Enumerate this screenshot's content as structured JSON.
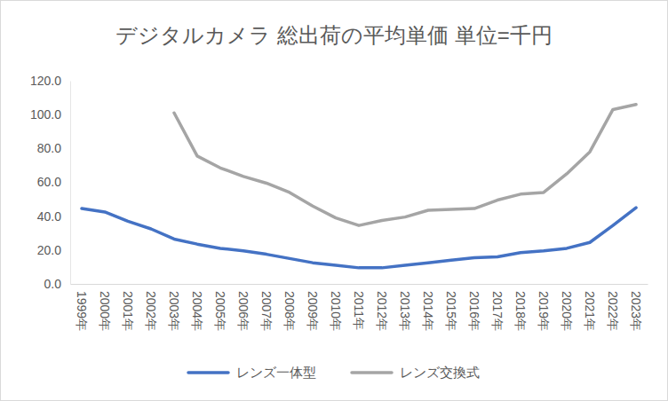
{
  "chart_data": {
    "type": "line",
    "title": "デジタルカメラ 総出荷の平均単価 単位=千円",
    "categories": [
      "1999年",
      "2000年",
      "2001年",
      "2002年",
      "2003年",
      "2004年",
      "2005年",
      "2006年",
      "2007年",
      "2008年",
      "2009年",
      "2010年",
      "2011年",
      "2012年",
      "2013年",
      "2014年",
      "2015年",
      "2016年",
      "2017年",
      "2018年",
      "2019年",
      "2020年",
      "2021年",
      "2022年",
      "2023年"
    ],
    "series": [
      {
        "name": "レンズ一体型",
        "color": "#4472c4",
        "values": [
          44.5,
          42.5,
          37,
          32.5,
          26.5,
          23.5,
          21,
          19.5,
          17.5,
          15,
          12.5,
          11,
          9.5,
          9.5,
          11,
          12.5,
          14,
          15.5,
          16,
          18.5,
          19.5,
          21,
          24.5,
          34.5,
          45
        ]
      },
      {
        "name": "レンズ交換式",
        "color": "#a5a5a5",
        "values": [
          null,
          null,
          null,
          null,
          101,
          75.5,
          68.5,
          63.5,
          59.5,
          54,
          46,
          39,
          34.5,
          37.5,
          39.5,
          43.5,
          44,
          44.5,
          49.5,
          53,
          54,
          65,
          78,
          103,
          106
        ]
      }
    ],
    "ylim": [
      0,
      120
    ],
    "yticks": [
      {
        "value": 0,
        "label": "0.0"
      },
      {
        "value": 20,
        "label": "20.0"
      },
      {
        "value": 40,
        "label": "40.0"
      },
      {
        "value": 60,
        "label": "60.0"
      },
      {
        "value": 80,
        "label": "80.0"
      },
      {
        "value": 100,
        "label": "100.0"
      },
      {
        "value": 120,
        "label": "120.0"
      }
    ],
    "grid": false,
    "legend": "bottom"
  }
}
